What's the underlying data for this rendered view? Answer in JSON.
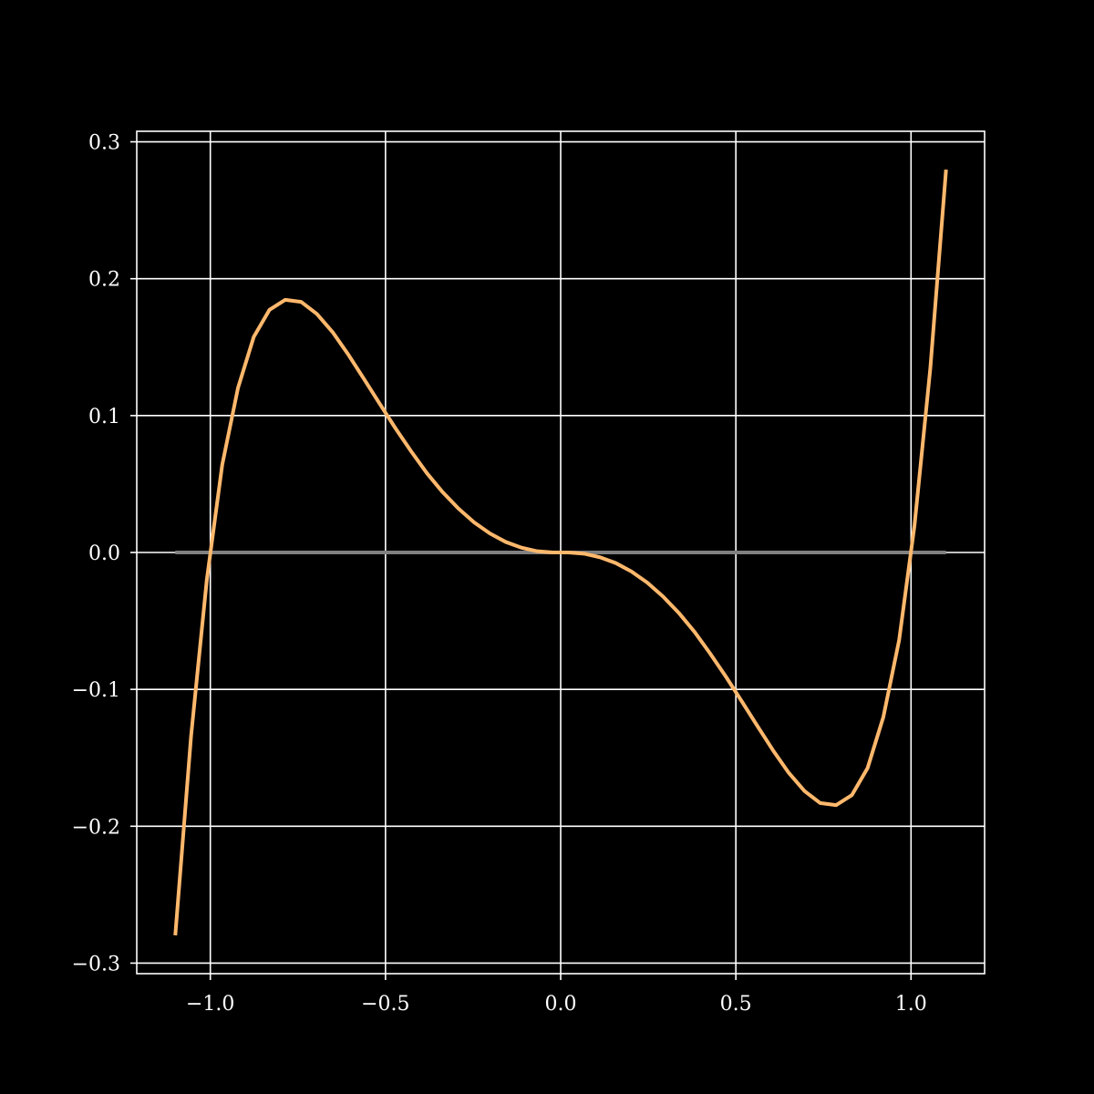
{
  "chart_data": {
    "type": "line",
    "title": "",
    "xlabel": "",
    "ylabel": "",
    "xlim": [
      -1.21,
      1.21
    ],
    "ylim": [
      -0.3077,
      0.3077
    ],
    "grid": true,
    "background_color": "#000000",
    "grid_color": "#ffffff",
    "x_ticks": [
      {
        "value": -1.0,
        "label": "−1.0"
      },
      {
        "value": -0.5,
        "label": "−0.5"
      },
      {
        "value": 0.0,
        "label": "0.0"
      },
      {
        "value": 0.5,
        "label": "0.5"
      },
      {
        "value": 1.0,
        "label": "1.0"
      }
    ],
    "y_ticks": [
      {
        "value": 0.3,
        "label": "0.3"
      },
      {
        "value": 0.2,
        "label": "0.2"
      },
      {
        "value": 0.1,
        "label": "0.1"
      },
      {
        "value": 0.0,
        "label": "0.0"
      },
      {
        "value": -0.1,
        "label": "−0.1"
      },
      {
        "value": -0.2,
        "label": "−0.2"
      },
      {
        "value": -0.3,
        "label": "−0.3"
      }
    ],
    "series": [
      {
        "color": "#808080",
        "x": [
          -1.1,
          1.1
        ],
        "y": [
          0.0,
          0.0
        ]
      },
      {
        "color": "#ffb86c",
        "x": [
          -1.1,
          -1.055,
          -1.01,
          -0.966,
          -0.921,
          -0.876,
          -0.831,
          -0.786,
          -0.741,
          -0.696,
          -0.651,
          -0.606,
          -0.561,
          -0.516,
          -0.471,
          -0.426,
          -0.382,
          -0.337,
          -0.292,
          -0.247,
          -0.202,
          -0.157,
          -0.112,
          -0.067,
          -0.022,
          0.022,
          0.067,
          0.112,
          0.157,
          0.202,
          0.247,
          0.292,
          0.337,
          0.382,
          0.426,
          0.471,
          0.516,
          0.561,
          0.606,
          0.651,
          0.696,
          0.741,
          0.786,
          0.831,
          0.876,
          0.921,
          0.966,
          1.01,
          1.055,
          1.1
        ],
        "y": [
          -0.2797,
          -0.1343,
          -0.0199,
          0.0641,
          0.1202,
          0.1575,
          0.1773,
          0.1846,
          0.1831,
          0.1743,
          0.161,
          0.1445,
          0.1266,
          0.1084,
          0.0905,
          0.0736,
          0.058,
          0.0441,
          0.0321,
          0.022,
          0.0139,
          0.0077,
          0.0035,
          0.0009,
          0.0,
          0.0,
          -0.0009,
          -0.0035,
          -0.0077,
          -0.0139,
          -0.022,
          -0.0321,
          -0.0441,
          -0.058,
          -0.0736,
          -0.0905,
          -0.1084,
          -0.1266,
          -0.1445,
          -0.161,
          -0.1743,
          -0.1831,
          -0.1846,
          -0.1773,
          -0.1575,
          -0.1202,
          -0.0641,
          0.0199,
          0.1343,
          0.2797
        ]
      }
    ]
  }
}
